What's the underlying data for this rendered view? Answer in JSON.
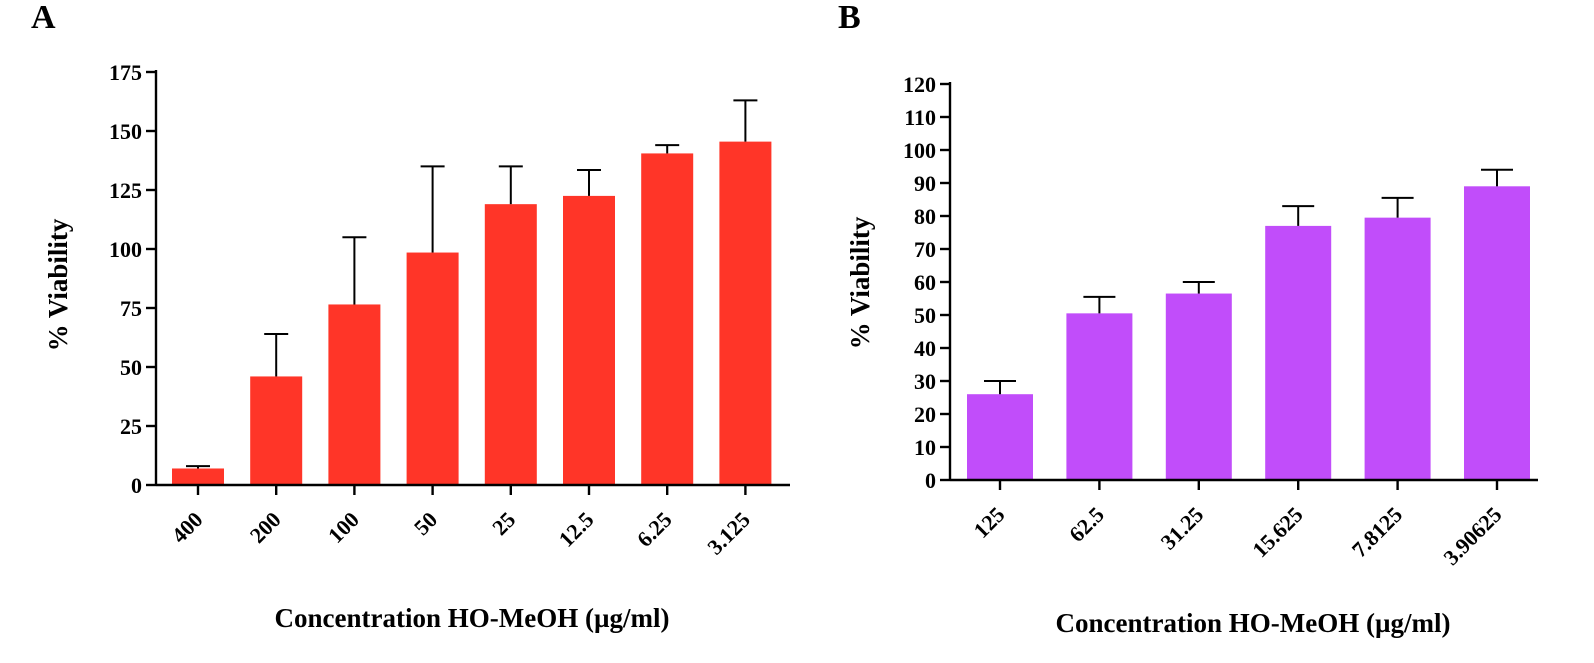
{
  "chart_data": [
    {
      "panel": "A",
      "type": "bar",
      "categories": [
        "400",
        "200",
        "100",
        "50",
        "25",
        "12.5",
        "6.25",
        "3.125"
      ],
      "values": [
        7,
        46,
        76.5,
        98.5,
        119,
        122.5,
        140.5,
        145.5
      ],
      "errors": [
        1,
        18,
        28.5,
        36.5,
        16,
        11,
        3.5,
        17.5
      ],
      "color": "#ff3528",
      "xlabel": "Concentration HO-MeOH (µg/ml)",
      "ylabel": "% Viability",
      "ylim": [
        0,
        175
      ],
      "yticks": [
        0,
        25,
        50,
        75,
        100,
        125,
        150,
        175
      ],
      "grid": false,
      "legend": "none"
    },
    {
      "panel": "B",
      "type": "bar",
      "categories": [
        "125",
        "62.5",
        "31.25",
        "15.625",
        "7.8125",
        "3.90625"
      ],
      "values": [
        26,
        50.5,
        56.5,
        77,
        79.5,
        89
      ],
      "errors": [
        4,
        5,
        3.5,
        6,
        6,
        5
      ],
      "color": "#c14dfa",
      "xlabel": "Concentration HO-MeOH (µg/ml)",
      "ylabel": "% Viability",
      "ylim": [
        0,
        120
      ],
      "yticks": [
        0,
        10,
        20,
        30,
        40,
        50,
        60,
        70,
        80,
        90,
        100,
        110,
        120
      ],
      "grid": false,
      "legend": "none"
    }
  ]
}
